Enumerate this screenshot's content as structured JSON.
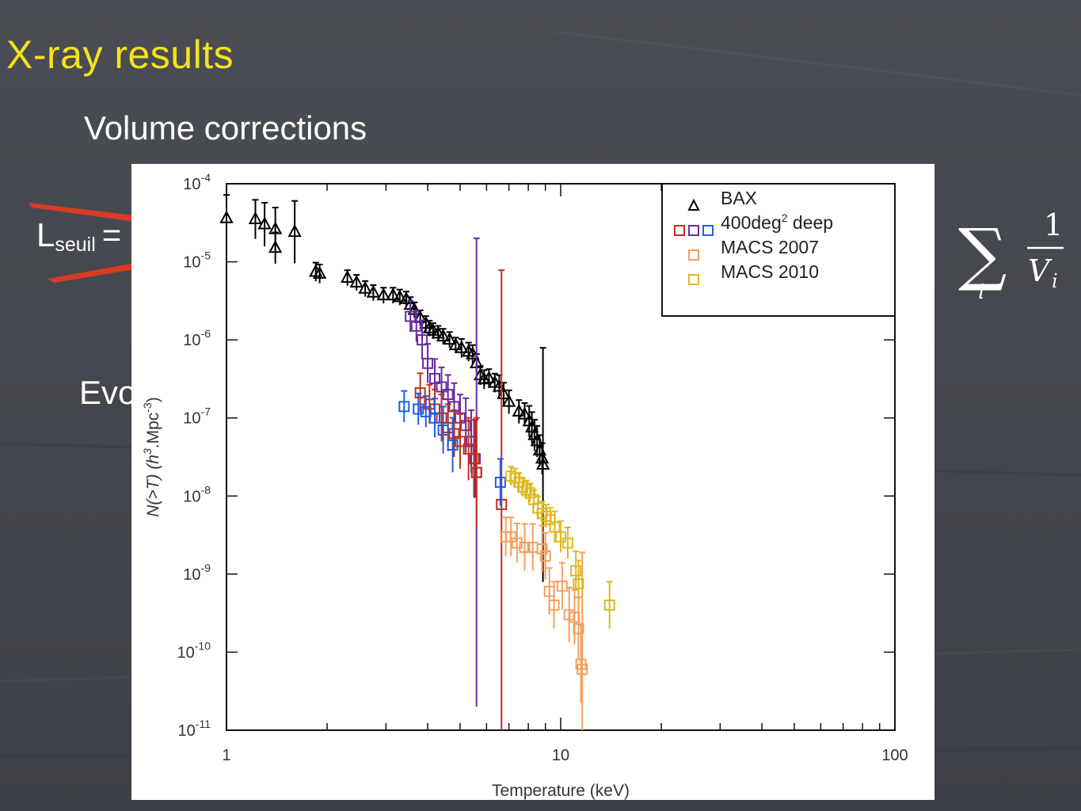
{
  "slide": {
    "title": "X-ray results",
    "bullet_1": "Volume corrections",
    "bullet_2": "Evo",
    "lseuil_main": "L",
    "lseuil_sub": "seuil",
    "lseuil_eq": "=",
    "title_color": "#f5e21a",
    "text_color": "#ffffff"
  },
  "chart_data": {
    "type": "scatter",
    "xscale": "log",
    "yscale": "log",
    "xlim": [
      1,
      100
    ],
    "ylim": [
      1e-11,
      0.0001
    ],
    "xlabel": "Temperature (keV)",
    "ylabel": "N(>T) (h³.Mpc⁻³)",
    "ylabel_parts": {
      "prefix": "N(>T) (",
      "h": "h",
      "h_exp": "3",
      "mid": ".Mpc",
      "mpc_exp": "-3",
      "suffix": ")"
    },
    "xticks": [
      {
        "value": 1,
        "label": "1"
      },
      {
        "value": 10,
        "label": "10"
      },
      {
        "value": 100,
        "label": "100"
      }
    ],
    "yticks": [
      {
        "exp": -4,
        "base": "10",
        "sup": "-4"
      },
      {
        "exp": -5,
        "base": "10",
        "sup": "-5"
      },
      {
        "exp": -6,
        "base": "10",
        "sup": "-6"
      },
      {
        "exp": -7,
        "base": "10",
        "sup": "-7"
      },
      {
        "exp": -8,
        "base": "10",
        "sup": "-8"
      },
      {
        "exp": -9,
        "base": "10",
        "sup": "-9"
      },
      {
        "exp": -10,
        "base": "10",
        "sup": "-10"
      },
      {
        "exp": -11,
        "base": "10",
        "sup": "-11"
      }
    ],
    "legend": {
      "placement": "top-right",
      "entries": [
        {
          "label": "BAX",
          "marker": "triangle",
          "colors": [
            "#000000"
          ]
        },
        {
          "label_main": "400deg",
          "label_sup": "2",
          "label_rest": " deep",
          "marker": "square",
          "colors": [
            "#c0301e",
            "#6a2aa0",
            "#1f5ee6"
          ]
        },
        {
          "label": "MACS 2007",
          "marker": "square",
          "colors": [
            "#f2a060"
          ]
        },
        {
          "label": "MACS 2010",
          "marker": "square",
          "colors": [
            "#e0b820"
          ]
        }
      ]
    },
    "series": [
      {
        "marker": "triangle",
        "color": "#000000",
        "points": [
          [
            1.0,
            3.6e-05,
            0.3
          ],
          [
            1.22,
            3.5e-05,
            0.25
          ],
          [
            1.3,
            3e-05,
            0.28
          ],
          [
            1.4,
            2.6e-05,
            0.28
          ],
          [
            1.4,
            1.5e-05,
            0.2
          ],
          [
            1.6,
            2.4e-05,
            0.4
          ],
          [
            1.85,
            7.4e-06,
            0.12
          ],
          [
            1.9,
            7e-06,
            0.12
          ],
          [
            2.3,
            6.2e-06,
            0.1
          ],
          [
            2.45,
            5.4e-06,
            0.1
          ],
          [
            2.6,
            4.5e-06,
            0.1
          ],
          [
            2.75,
            4e-06,
            0.1
          ],
          [
            2.95,
            3.7e-06,
            0.1
          ],
          [
            3.15,
            3.7e-06,
            0.1
          ],
          [
            3.3,
            3.5e-06,
            0.1
          ],
          [
            3.45,
            3.3e-06,
            0.1
          ],
          [
            3.55,
            2.8e-06,
            0.1
          ],
          [
            3.65,
            2.4e-06,
            0.1
          ],
          [
            3.8,
            1.9e-06,
            0.1
          ],
          [
            3.95,
            1.6e-06,
            0.1
          ],
          [
            4.05,
            1.4e-06,
            0.1
          ],
          [
            4.15,
            1.3e-06,
            0.1
          ],
          [
            4.3,
            1.2e-06,
            0.1
          ],
          [
            4.45,
            1.1e-06,
            0.1
          ],
          [
            4.65,
            1e-06,
            0.1
          ],
          [
            4.85,
            8.5e-07,
            0.1
          ],
          [
            5.05,
            7.8e-07,
            0.12
          ],
          [
            5.3,
            7e-07,
            0.12
          ],
          [
            5.45,
            6.5e-07,
            0.12
          ],
          [
            5.6,
            5e-07,
            0.12
          ],
          [
            5.75,
            3.5e-07,
            0.12
          ],
          [
            5.9,
            3.1e-07,
            0.12
          ],
          [
            6.1,
            3.2e-07,
            0.12
          ],
          [
            6.35,
            2.8e-07,
            0.12
          ],
          [
            6.55,
            2.5e-07,
            0.15
          ],
          [
            6.75,
            2e-07,
            0.15
          ],
          [
            7.0,
            1.6e-07,
            0.15
          ],
          [
            7.5,
            1.2e-07,
            0.15
          ],
          [
            7.8,
            1.1e-07,
            0.15
          ],
          [
            8.05,
            9e-08,
            0.2
          ],
          [
            8.2,
            7.5e-08,
            0.2
          ],
          [
            8.35,
            6e-08,
            0.2
          ],
          [
            8.5,
            5e-08,
            0.2
          ],
          [
            8.65,
            3.8e-08,
            0.2
          ],
          [
            8.8,
            3e-08,
            0.2
          ],
          [
            8.85,
            2.5e-08,
            1.5
          ]
        ]
      },
      {
        "marker": "square",
        "color": "#6a2aa0",
        "points": [
          [
            3.55,
            2e-06,
            0.2
          ],
          [
            3.7,
            1.5e-06,
            0.2
          ],
          [
            3.85,
            1e-06,
            0.25
          ],
          [
            4.0,
            5e-07,
            0.25
          ],
          [
            4.2,
            3.2e-07,
            0.25
          ],
          [
            4.4,
            2.5e-07,
            0.25
          ],
          [
            4.6,
            2e-07,
            0.25
          ],
          [
            4.8,
            1.4e-07,
            0.3
          ],
          [
            5.0,
            1e-07,
            0.3
          ],
          [
            5.2,
            8e-08,
            0.35
          ],
          [
            5.4,
            5e-08,
            0.4
          ],
          [
            5.55,
            3e-08,
            0.5
          ],
          [
            5.6,
            2e-08,
            3.0
          ]
        ]
      },
      {
        "marker": "square",
        "color": "#c0301e",
        "points": [
          [
            3.8,
            2.1e-07,
            0.25
          ],
          [
            4.05,
            1.5e-07,
            0.25
          ],
          [
            4.2,
            1.3e-07,
            0.25
          ],
          [
            4.4,
            1e-07,
            0.3
          ],
          [
            4.6,
            7.5e-08,
            0.3
          ],
          [
            4.8,
            6.3e-08,
            0.3
          ],
          [
            5.0,
            5e-08,
            0.35
          ],
          [
            5.3,
            4e-08,
            0.4
          ],
          [
            5.5,
            3e-08,
            0.5
          ],
          [
            5.6,
            2e-08,
            0.7
          ],
          [
            6.65,
            7.8e-09,
            3.0
          ]
        ]
      },
      {
        "marker": "square",
        "color": "#1f5ee6",
        "points": [
          [
            3.4,
            1.4e-07,
            0.2
          ],
          [
            3.75,
            1.3e-07,
            0.2
          ],
          [
            3.95,
            1.2e-07,
            0.2
          ],
          [
            4.2,
            1e-07,
            0.25
          ],
          [
            4.45,
            7e-08,
            0.3
          ],
          [
            4.75,
            4.5e-08,
            0.35
          ],
          [
            6.6,
            1.5e-08,
            0.3
          ]
        ]
      },
      {
        "marker": "square",
        "color": "#f2a060",
        "points": [
          [
            6.85,
            3e-09,
            0.25
          ],
          [
            7.1,
            3e-09,
            0.25
          ],
          [
            7.4,
            2.5e-09,
            0.25
          ],
          [
            7.8,
            2.2e-09,
            0.3
          ],
          [
            8.25,
            2.2e-09,
            0.3
          ],
          [
            8.8,
            2.1e-09,
            0.3
          ],
          [
            9.0,
            1.7e-09,
            0.3
          ],
          [
            9.25,
            6e-10,
            0.3
          ],
          [
            9.55,
            4e-10,
            0.3
          ],
          [
            10.1,
            7e-10,
            0.3
          ],
          [
            10.6,
            3e-10,
            0.35
          ],
          [
            11.0,
            2.8e-10,
            0.35
          ],
          [
            11.3,
            2e-10,
            0.4
          ],
          [
            11.5,
            7e-11,
            0.5
          ],
          [
            11.6,
            6e-11,
            1.5
          ]
        ]
      },
      {
        "marker": "square",
        "color": "#e0b820",
        "points": [
          [
            7.1,
            1.8e-08,
            0.12
          ],
          [
            7.3,
            1.7e-08,
            0.12
          ],
          [
            7.5,
            1.5e-08,
            0.12
          ],
          [
            7.7,
            1.3e-08,
            0.12
          ],
          [
            7.9,
            1.2e-08,
            0.12
          ],
          [
            8.1,
            1.1e-08,
            0.12
          ],
          [
            8.3,
            9e-09,
            0.12
          ],
          [
            8.55,
            7e-09,
            0.15
          ],
          [
            8.8,
            6e-09,
            0.15
          ],
          [
            9.05,
            5.5e-09,
            0.15
          ],
          [
            9.3,
            5e-09,
            0.15
          ],
          [
            9.6,
            4e-09,
            0.2
          ],
          [
            10.0,
            3e-09,
            0.2
          ],
          [
            10.5,
            2.5e-09,
            0.2
          ],
          [
            11.1,
            1.1e-09,
            0.25
          ],
          [
            11.3,
            7.5e-10,
            0.3
          ],
          [
            14.0,
            4e-10,
            0.3
          ]
        ]
      }
    ]
  }
}
